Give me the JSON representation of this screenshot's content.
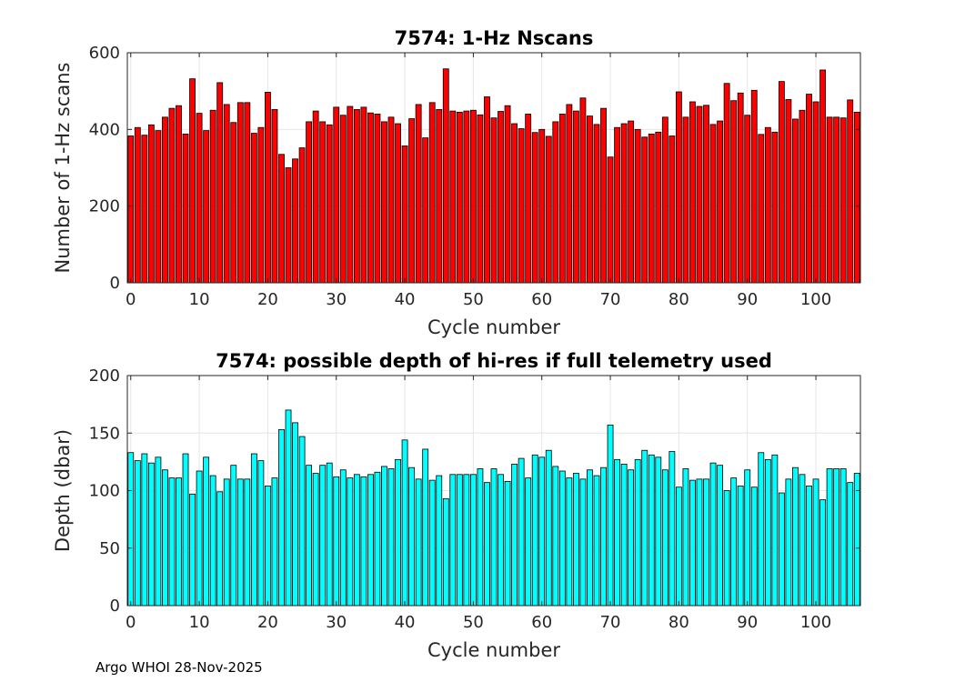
{
  "chart_data": [
    {
      "type": "bar",
      "title": "7574: 1-Hz Nscans",
      "xlabel": "Cycle number",
      "ylabel": "Number of 1-Hz scans",
      "xlim": [
        -0.5,
        106.5
      ],
      "ylim": [
        0,
        600
      ],
      "xticks": [
        "0",
        "10",
        "20",
        "30",
        "40",
        "50",
        "60",
        "70",
        "80",
        "90",
        "100"
      ],
      "yticks": [
        "0",
        "200",
        "400",
        "600"
      ],
      "grid": true,
      "bar_color": "#ff0000",
      "edge_color": "#000000",
      "x": [
        0,
        1,
        2,
        3,
        4,
        5,
        6,
        7,
        8,
        9,
        10,
        11,
        12,
        13,
        14,
        15,
        16,
        17,
        18,
        19,
        20,
        21,
        22,
        23,
        24,
        25,
        26,
        27,
        28,
        29,
        30,
        31,
        32,
        33,
        34,
        35,
        36,
        37,
        38,
        39,
        40,
        41,
        42,
        43,
        44,
        45,
        46,
        47,
        48,
        49,
        50,
        51,
        52,
        53,
        54,
        55,
        56,
        57,
        58,
        59,
        60,
        61,
        62,
        63,
        64,
        65,
        66,
        67,
        68,
        69,
        70,
        71,
        72,
        73,
        74,
        75,
        76,
        77,
        78,
        79,
        80,
        81,
        82,
        83,
        84,
        85,
        86,
        87,
        88,
        89,
        90,
        91,
        92,
        93,
        94,
        95,
        96,
        97,
        98,
        99,
        100,
        101,
        102,
        103,
        104,
        105,
        106
      ],
      "values": [
        383,
        405,
        385,
        412,
        397,
        432,
        455,
        462,
        388,
        532,
        442,
        397,
        450,
        522,
        465,
        418,
        470,
        470,
        390,
        405,
        497,
        452,
        335,
        300,
        323,
        352,
        420,
        448,
        420,
        412,
        458,
        437,
        460,
        452,
        458,
        443,
        440,
        420,
        432,
        415,
        357,
        428,
        465,
        378,
        470,
        452,
        558,
        448,
        445,
        448,
        450,
        438,
        485,
        430,
        447,
        462,
        415,
        402,
        440,
        392,
        400,
        382,
        420,
        440,
        465,
        448,
        482,
        435,
        413,
        455,
        328,
        405,
        415,
        422,
        400,
        380,
        388,
        393,
        432,
        383,
        498,
        432,
        472,
        460,
        463,
        413,
        422,
        520,
        475,
        495,
        437,
        502,
        387,
        405,
        393,
        525,
        478,
        427,
        450,
        492,
        472,
        555,
        432,
        432,
        430,
        477,
        445
      ]
    },
    {
      "type": "bar",
      "title": "7574: possible depth of hi-res if full telemetry used",
      "xlabel": "Cycle number",
      "ylabel": "Depth (dbar)",
      "xlim": [
        -0.5,
        106.5
      ],
      "ylim": [
        0,
        200
      ],
      "xticks": [
        "0",
        "10",
        "20",
        "30",
        "40",
        "50",
        "60",
        "70",
        "80",
        "90",
        "100"
      ],
      "yticks": [
        "0",
        "50",
        "100",
        "150",
        "200"
      ],
      "grid": true,
      "bar_color": "#00ffff",
      "edge_color": "#000000",
      "x": [
        0,
        1,
        2,
        3,
        4,
        5,
        6,
        7,
        8,
        9,
        10,
        11,
        12,
        13,
        14,
        15,
        16,
        17,
        18,
        19,
        20,
        21,
        22,
        23,
        24,
        25,
        26,
        27,
        28,
        29,
        30,
        31,
        32,
        33,
        34,
        35,
        36,
        37,
        38,
        39,
        40,
        41,
        42,
        43,
        44,
        45,
        46,
        47,
        48,
        49,
        50,
        51,
        52,
        53,
        54,
        55,
        56,
        57,
        58,
        59,
        60,
        61,
        62,
        63,
        64,
        65,
        66,
        67,
        68,
        69,
        70,
        71,
        72,
        73,
        74,
        75,
        76,
        77,
        78,
        79,
        80,
        81,
        82,
        83,
        84,
        85,
        86,
        87,
        88,
        89,
        90,
        91,
        92,
        93,
        94,
        95,
        96,
        97,
        98,
        99,
        100,
        101,
        102,
        103,
        104,
        105,
        106
      ],
      "values": [
        133,
        126,
        132,
        124,
        129,
        118,
        111,
        111,
        132,
        97,
        117,
        129,
        113,
        99,
        110,
        122,
        110,
        110,
        132,
        126,
        104,
        111,
        153,
        170,
        159,
        147,
        122,
        115,
        122,
        124,
        112,
        118,
        111,
        114,
        112,
        114,
        116,
        121,
        119,
        127,
        144,
        120,
        110,
        136,
        109,
        113,
        93,
        114,
        114,
        114,
        114,
        119,
        107,
        119,
        114,
        108,
        123,
        128,
        111,
        131,
        129,
        135,
        121,
        117,
        111,
        115,
        110,
        118,
        113,
        120,
        157,
        127,
        123,
        118,
        127,
        135,
        131,
        129,
        118,
        134,
        103,
        119,
        109,
        110,
        110,
        124,
        122,
        100,
        111,
        104,
        118,
        103,
        133,
        127,
        131,
        98,
        110,
        120,
        114,
        104,
        110,
        92,
        119,
        119,
        119,
        107,
        115
      ]
    }
  ],
  "footer": "Argo WHOI 28-Nov-2025"
}
